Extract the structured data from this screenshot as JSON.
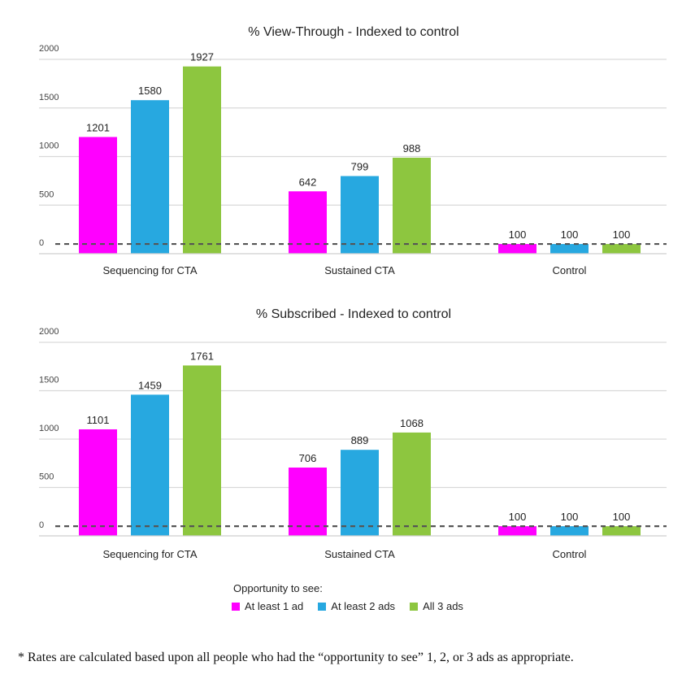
{
  "chart_data": [
    {
      "type": "bar",
      "title": "% View-Through - Indexed to control",
      "categories": [
        "Sequencing for CTA",
        "Sustained CTA",
        "Control"
      ],
      "series": [
        {
          "name": "At least 1 ad",
          "values": [
            1201,
            642,
            100
          ]
        },
        {
          "name": "At least 2 ads",
          "values": [
            1580,
            799,
            100
          ]
        },
        {
          "name": "All 3 ads",
          "values": [
            1927,
            988,
            100
          ]
        }
      ],
      "yticks": [
        "0",
        "500",
        "1000",
        "1500",
        "2000"
      ],
      "ylim": [
        0,
        2000
      ],
      "reference_line": 100,
      "grid": true
    },
    {
      "type": "bar",
      "title": "% Subscribed - Indexed to control",
      "categories": [
        "Sequencing for CTA",
        "Sustained CTA",
        "Control"
      ],
      "series": [
        {
          "name": "At least 1 ad",
          "values": [
            1101,
            706,
            100
          ]
        },
        {
          "name": "At least 2 ads",
          "values": [
            1459,
            889,
            100
          ]
        },
        {
          "name": "All 3 ads",
          "values": [
            1761,
            1068,
            100
          ]
        }
      ],
      "yticks": [
        "0",
        "500",
        "1000",
        "1500",
        "2000"
      ],
      "ylim": [
        0,
        2000
      ],
      "reference_line": 100,
      "grid": true
    }
  ],
  "legend": {
    "title": "Opportunity to see:",
    "placement": "bottom-center",
    "items": [
      {
        "label": "At least 1 ad",
        "color": "#ff00ff"
      },
      {
        "label": "At least 2 ads",
        "color": "#27a8e0"
      },
      {
        "label": "All 3 ads",
        "color": "#8dc63f"
      }
    ]
  },
  "footnote": "* Rates are calculated based upon all people who had the “opportunity to see” 1, 2, or 3 ads as appropriate."
}
